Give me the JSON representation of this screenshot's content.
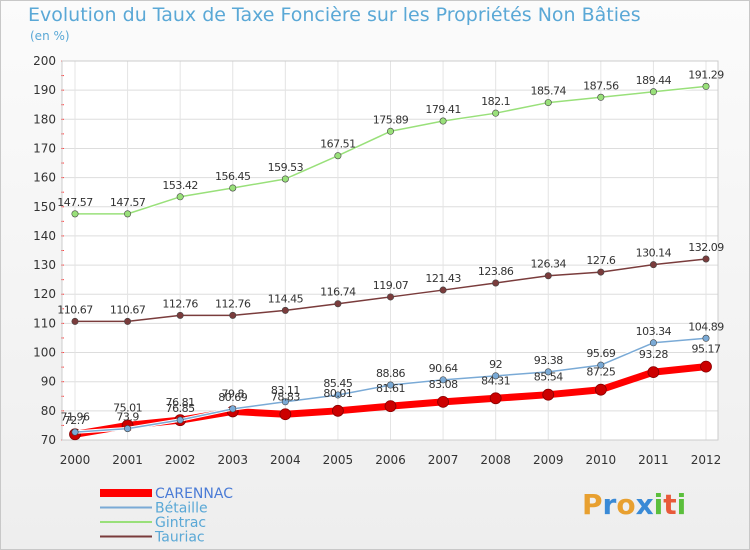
{
  "chart_data": {
    "type": "line",
    "title": "Evolution du Taux de Taxe Foncière sur les Propriétés Non Bâties",
    "ylabel": "(en %)",
    "categories": [
      "2000",
      "2001",
      "2002",
      "2003",
      "2004",
      "2005",
      "2006",
      "2007",
      "2008",
      "2009",
      "2010",
      "2011",
      "2012"
    ],
    "ylim": [
      70,
      200
    ],
    "yticks": [
      70,
      80,
      90,
      100,
      110,
      120,
      130,
      140,
      150,
      160,
      170,
      180,
      190,
      200
    ],
    "grid": true,
    "legend_position": "bottom-left",
    "series": [
      {
        "name": "CARENNAC",
        "color": "#ff0000",
        "values": [
          71.96,
          75.01,
          76.81,
          79.8,
          78.83,
          80.01,
          81.61,
          83.08,
          84.31,
          85.54,
          87.25,
          93.28,
          95.17
        ],
        "labels": [
          "71.96",
          "75.01",
          "76.81",
          "79.8",
          "78.83",
          "80.01",
          "81.61",
          "83.08",
          "84.31",
          "85.54",
          "87.25",
          "93.28",
          "95.17"
        ]
      },
      {
        "name": "Bétaille",
        "color": "#7aaad6",
        "values": [
          72.7,
          73.9,
          76.85,
          80.69,
          83.11,
          85.45,
          88.86,
          90.64,
          92,
          93.38,
          95.69,
          103.34,
          104.89
        ],
        "labels": [
          "72.7",
          "73.9",
          "76.85",
          "80.69",
          "83.11",
          "85.45",
          "88.86",
          "90.64",
          "92",
          "93.38",
          "95.69",
          "103.34",
          "104.89"
        ]
      },
      {
        "name": "Gintrac",
        "color": "#99e07a",
        "values": [
          147.57,
          147.57,
          153.42,
          156.45,
          159.53,
          167.51,
          175.89,
          179.41,
          182.1,
          185.74,
          187.56,
          189.44,
          191.29
        ],
        "labels": [
          "147.57",
          "147.57",
          "153.42",
          "156.45",
          "159.53",
          "167.51",
          "175.89",
          "179.41",
          "182.1",
          "185.74",
          "187.56",
          "189.44",
          "191.29"
        ]
      },
      {
        "name": "Tauriac",
        "color": "#7a3c3c",
        "values": [
          110.67,
          110.67,
          112.76,
          112.76,
          114.45,
          116.74,
          119.07,
          121.43,
          123.86,
          126.34,
          127.6,
          130.14,
          132.09
        ],
        "labels": [
          "110.67",
          "110.67",
          "112.76",
          "112.76",
          "114.45",
          "116.74",
          "119.07",
          "121.43",
          "123.86",
          "126.34",
          "127.6",
          "130.14",
          "132.09"
        ]
      }
    ]
  },
  "logo": {
    "letters": [
      "P",
      "r",
      "o",
      "x",
      "i",
      "t",
      "i"
    ],
    "colors": [
      "#e8a030",
      "#3a8ad6",
      "#e8a030",
      "#3a8ad6",
      "#5bbf3c",
      "#e85a3a",
      "#5bbf3c"
    ]
  }
}
